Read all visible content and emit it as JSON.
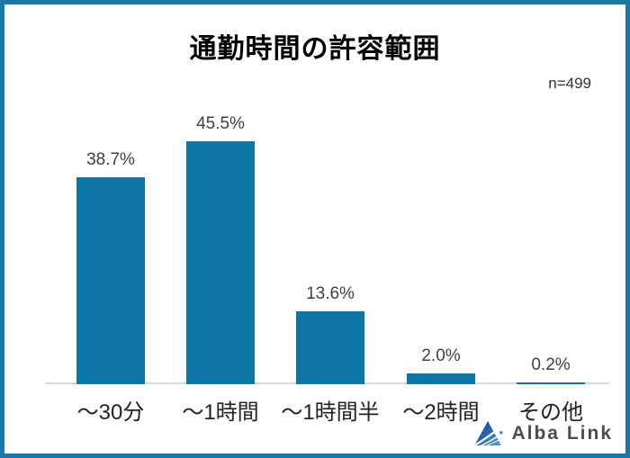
{
  "title": "通勤時間の許容範囲",
  "sample_size_label": "n=499",
  "branding": {
    "logo_text": "Alba Link",
    "logo_icon": "alba-link-triangle-logo"
  },
  "colors": {
    "bar": "#0d76a4",
    "frame_border": "#1a79a6",
    "axis_line": "#d9d9d9",
    "value_label": "#404040",
    "logo_dark_blue": "#1d3a8f",
    "logo_light_blue": "#55aadf"
  },
  "chart_data": {
    "type": "bar",
    "title": "通勤時間の許容範囲",
    "categories": [
      "〜30分",
      "〜1時間",
      "〜1時間半",
      "〜2時間",
      "その他"
    ],
    "values": [
      38.7,
      45.5,
      13.6,
      2.0,
      0.2
    ],
    "value_labels": [
      "38.7%",
      "45.5%",
      "13.6%",
      "2.0%",
      "0.2%"
    ],
    "xlabel": "",
    "ylabel": "",
    "ylim": [
      0,
      50
    ],
    "grid": false,
    "legend": false,
    "annotation": "n=499"
  }
}
